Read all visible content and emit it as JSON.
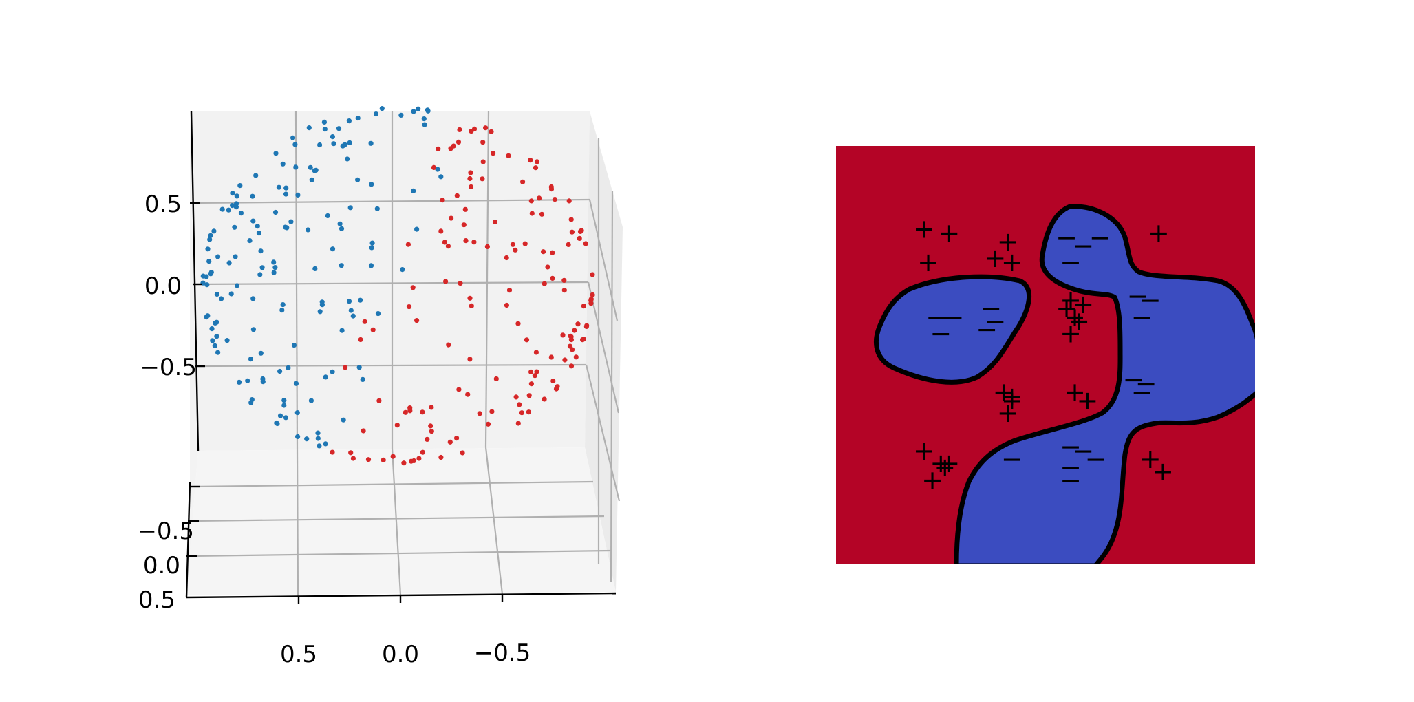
{
  "colors": {
    "class_a": "#1f77b4",
    "class_b": "#d62728",
    "region_positive": "#b40426",
    "region_negative": "#3b4cc0",
    "boundary": "#000000",
    "pane_left": "#ebebeb",
    "pane_back": "#f2f2f2",
    "pane_floor": "#f5f5f5",
    "grid": "#b0b0b0"
  },
  "chart_data": [
    {
      "type": "scatter",
      "subtype": "3d",
      "title": "",
      "xlabel": "",
      "ylabel": "",
      "zlabel": "",
      "x_ticks": [
        "0.5",
        "0.0",
        "−0.5"
      ],
      "y_ticks": [
        "−0.5",
        "0.0",
        "0.5"
      ],
      "z_ticks": [
        "0.5",
        "0.0",
        "−0.5"
      ],
      "x_range": [
        -1,
        1
      ],
      "y_range": [
        -1,
        1
      ],
      "z_range": [
        -1,
        1
      ],
      "grid": true,
      "n_points": 300,
      "description_of_data": "points on a unit sphere colored by two classes",
      "series": [
        {
          "color": "#1f77b4",
          "count": 150
        },
        {
          "color": "#d62728",
          "count": 150
        }
      ]
    },
    {
      "type": "heatmap",
      "subtype": "decision-region",
      "title": "",
      "x_ticks": [],
      "y_ticks": [],
      "x_range": [
        0,
        1
      ],
      "y_range": [
        0,
        1
      ],
      "region_colors": {
        "positive": "#b40426",
        "negative": "#3b4cc0"
      },
      "marker_symbols": {
        "positive": "+",
        "negative": "−"
      },
      "plus_markers": [
        [
          0.21,
          0.2
        ],
        [
          0.27,
          0.21
        ],
        [
          0.22,
          0.28
        ],
        [
          0.38,
          0.27
        ],
        [
          0.41,
          0.23
        ],
        [
          0.42,
          0.28
        ],
        [
          0.55,
          0.39
        ],
        [
          0.57,
          0.41
        ],
        [
          0.58,
          0.42
        ],
        [
          0.56,
          0.45
        ],
        [
          0.59,
          0.38
        ],
        [
          0.56,
          0.37
        ],
        [
          0.4,
          0.59
        ],
        [
          0.42,
          0.61
        ],
        [
          0.41,
          0.64
        ],
        [
          0.42,
          0.6
        ],
        [
          0.57,
          0.59
        ],
        [
          0.6,
          0.61
        ],
        [
          0.77,
          0.21
        ],
        [
          0.21,
          0.73
        ],
        [
          0.25,
          0.76
        ],
        [
          0.27,
          0.76
        ],
        [
          0.23,
          0.8
        ],
        [
          0.26,
          0.77
        ],
        [
          0.75,
          0.75
        ],
        [
          0.78,
          0.78
        ]
      ],
      "minus_markers": [
        [
          0.55,
          0.22
        ],
        [
          0.59,
          0.24
        ],
        [
          0.63,
          0.22
        ],
        [
          0.56,
          0.28
        ],
        [
          0.24,
          0.41
        ],
        [
          0.28,
          0.41
        ],
        [
          0.25,
          0.45
        ],
        [
          0.37,
          0.39
        ],
        [
          0.38,
          0.42
        ],
        [
          0.36,
          0.44
        ],
        [
          0.72,
          0.36
        ],
        [
          0.75,
          0.37
        ],
        [
          0.73,
          0.41
        ],
        [
          0.71,
          0.56
        ],
        [
          0.74,
          0.57
        ],
        [
          0.73,
          0.59
        ],
        [
          0.42,
          0.75
        ],
        [
          0.56,
          0.72
        ],
        [
          0.59,
          0.73
        ],
        [
          0.62,
          0.75
        ],
        [
          0.56,
          0.77
        ],
        [
          0.56,
          0.8
        ]
      ]
    }
  ]
}
